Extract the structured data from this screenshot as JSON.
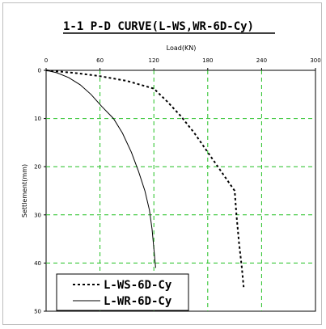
{
  "chart_data": {
    "type": "line",
    "title": "1-1 P-D CURVE(L-WS,WR-6D-Cy)",
    "xlabel": "Load(KN)",
    "ylabel": "Settlement(mm)",
    "xlim": [
      0,
      300
    ],
    "ylim": [
      0,
      50
    ],
    "x_ticks": [
      "0",
      "60",
      "120",
      "180",
      "240",
      "300"
    ],
    "y_ticks": [
      "0",
      "10",
      "20",
      "30",
      "40",
      "50"
    ],
    "x_axis_position": "top",
    "y_axis_inverted": true,
    "grid": true,
    "grid_style": "dashed",
    "grid_color": "#22c022",
    "legend_position": "bottom-left",
    "series": [
      {
        "name": "L-WS-6D-Cy",
        "style": "dotted",
        "color": "#000000",
        "points": [
          [
            0,
            0
          ],
          [
            12,
            0.2
          ],
          [
            35,
            0.6
          ],
          [
            60,
            1.2
          ],
          [
            90,
            2.2
          ],
          [
            120,
            3.8
          ],
          [
            135,
            6.5
          ],
          [
            150,
            9.5
          ],
          [
            165,
            13
          ],
          [
            180,
            17
          ],
          [
            195,
            21
          ],
          [
            210,
            25
          ],
          [
            212,
            30
          ],
          [
            215,
            36
          ],
          [
            218,
            41
          ],
          [
            220,
            45
          ]
        ]
      },
      {
        "name": "L-WR-6D-Cy",
        "style": "solid",
        "color": "#000000",
        "points": [
          [
            0,
            0
          ],
          [
            12,
            0.5
          ],
          [
            25,
            1.5
          ],
          [
            38,
            3
          ],
          [
            50,
            5
          ],
          [
            62,
            7.5
          ],
          [
            75,
            10
          ],
          [
            85,
            13
          ],
          [
            95,
            17
          ],
          [
            103,
            21
          ],
          [
            110,
            25
          ],
          [
            115,
            29
          ],
          [
            118,
            33
          ],
          [
            120,
            37
          ],
          [
            122,
            41
          ]
        ]
      }
    ]
  }
}
